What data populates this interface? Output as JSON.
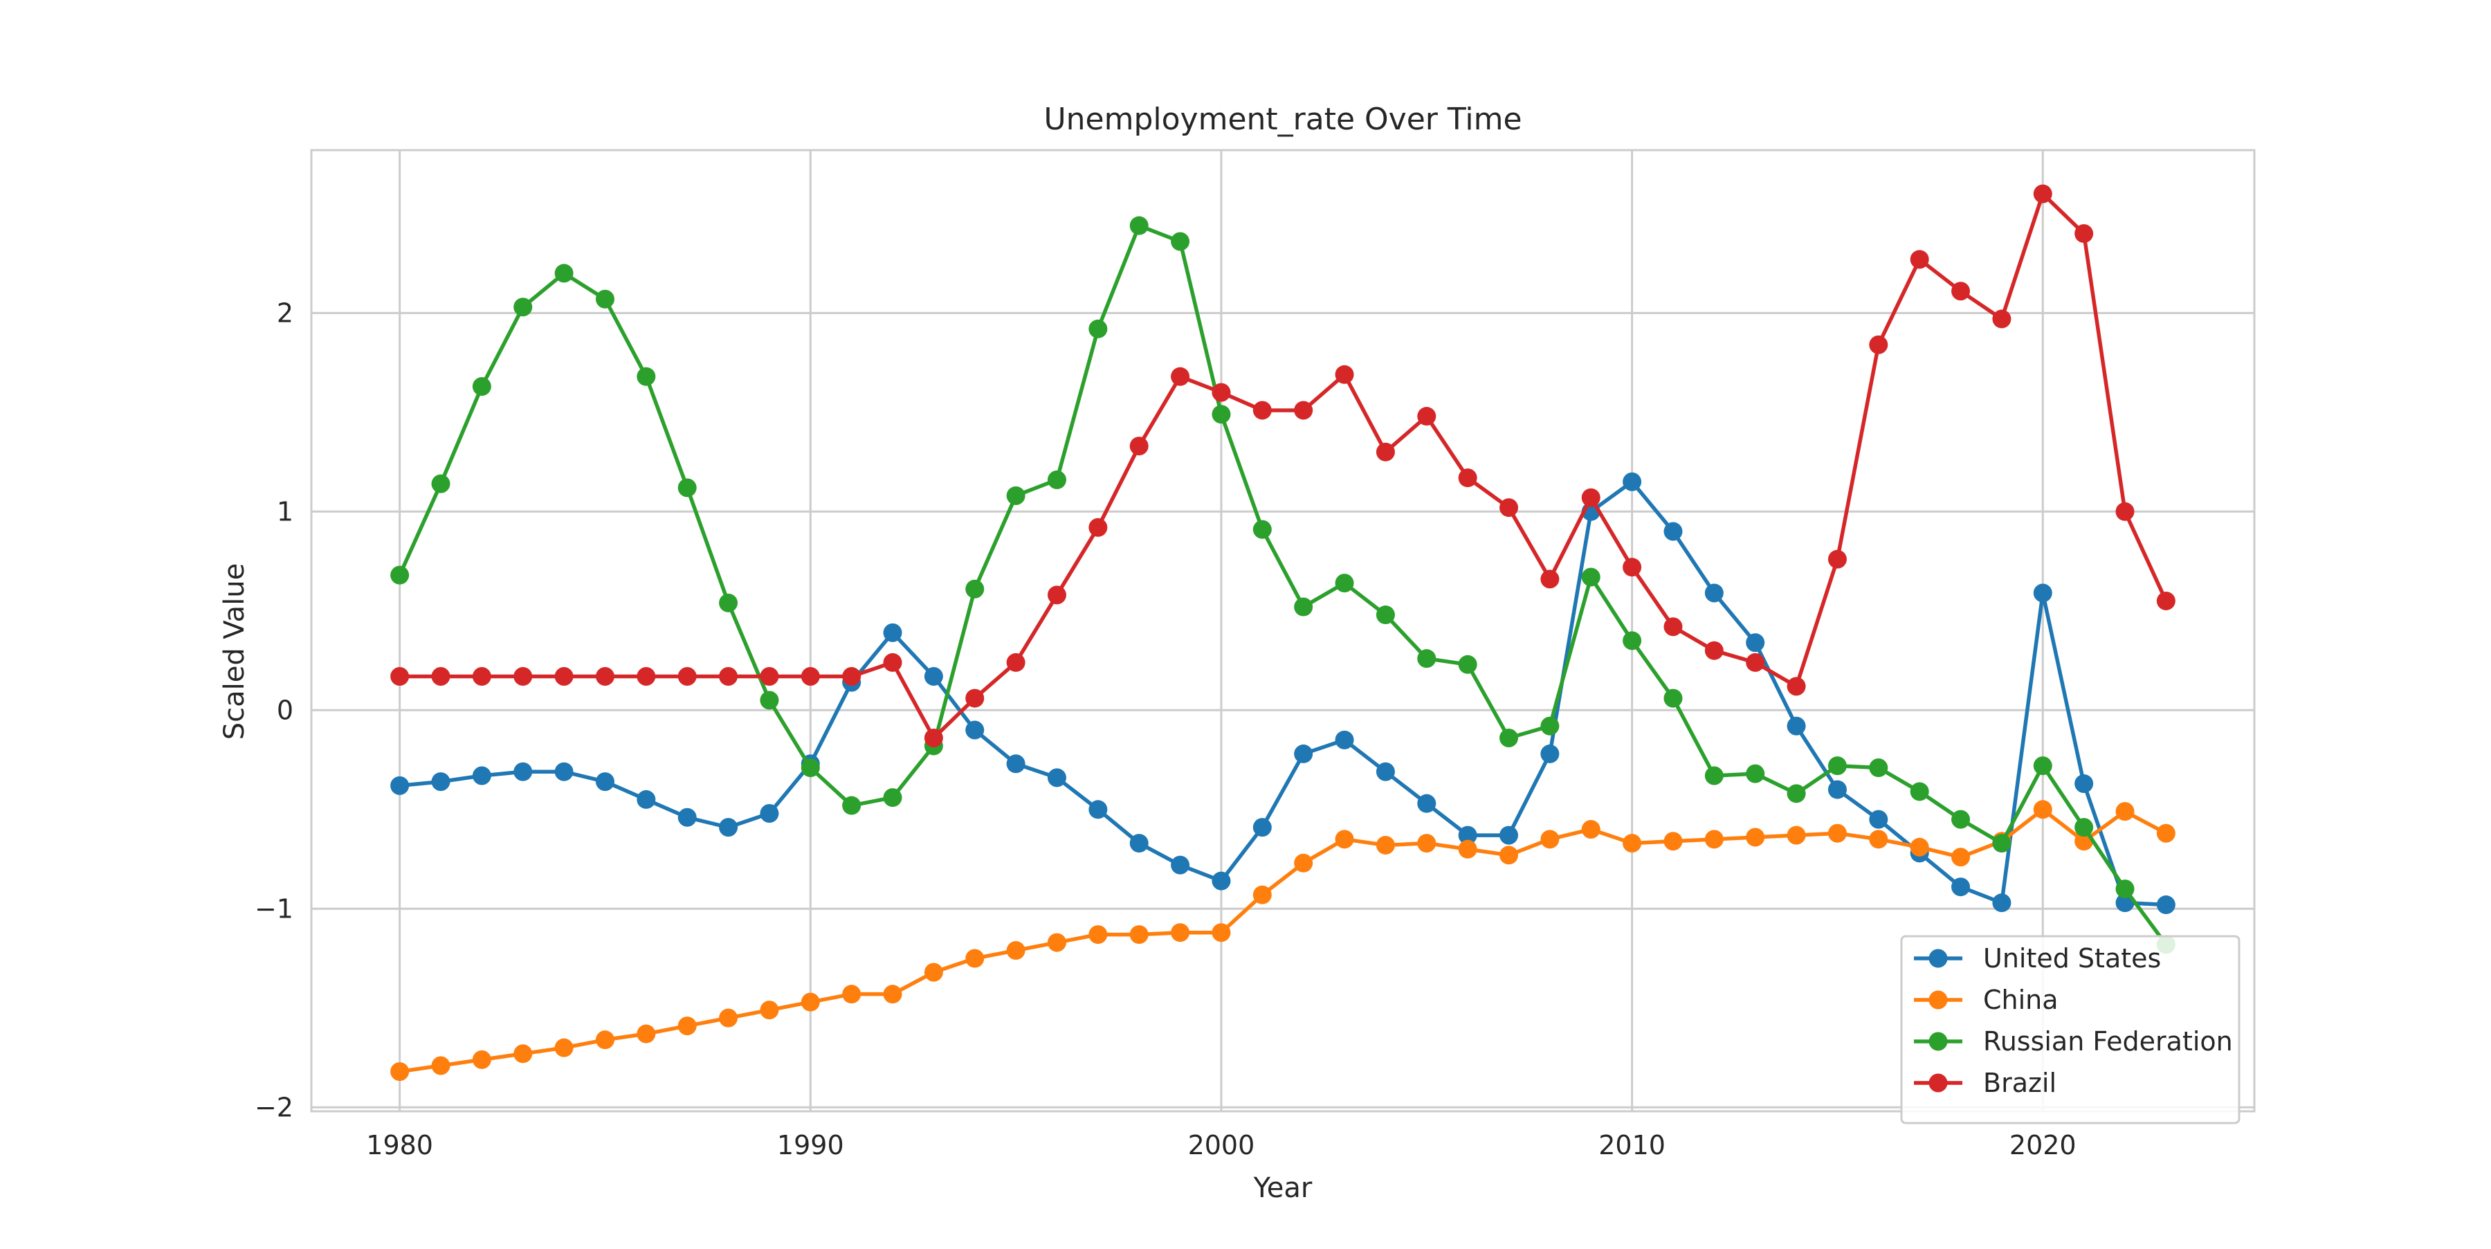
{
  "chart_data": {
    "type": "line",
    "title": "Unemployment_rate Over Time",
    "xlabel": "Year",
    "ylabel": "Scaled Value",
    "x": [
      1980,
      1981,
      1982,
      1983,
      1984,
      1985,
      1986,
      1987,
      1988,
      1989,
      1990,
      1991,
      1992,
      1993,
      1994,
      1995,
      1996,
      1997,
      1998,
      1999,
      2000,
      2001,
      2002,
      2003,
      2004,
      2005,
      2006,
      2007,
      2008,
      2009,
      2010,
      2011,
      2012,
      2013,
      2014,
      2015,
      2016,
      2017,
      2018,
      2019,
      2020,
      2021,
      2022,
      2023
    ],
    "xlim": [
      1977.85,
      2025.15
    ],
    "ylim": [
      -2.02,
      2.82
    ],
    "xticks": [
      1980,
      1990,
      2000,
      2010,
      2020
    ],
    "xtick_labels": [
      "1980",
      "1990",
      "2000",
      "2010",
      "2020"
    ],
    "yticks": [
      -2,
      -1,
      0,
      1,
      2
    ],
    "ytick_labels": [
      "−2",
      "−1",
      "0",
      "1",
      "2"
    ],
    "grid": true,
    "legend_position": "lower right",
    "series": [
      {
        "name": "United States",
        "color": "#1f77b4",
        "values": [
          -0.38,
          -0.36,
          -0.33,
          -0.31,
          -0.31,
          -0.36,
          -0.45,
          -0.54,
          -0.59,
          -0.52,
          -0.27,
          0.14,
          0.39,
          0.17,
          -0.1,
          -0.27,
          -0.34,
          -0.5,
          -0.67,
          -0.78,
          -0.86,
          -0.59,
          -0.22,
          -0.15,
          -0.31,
          -0.47,
          -0.63,
          -0.63,
          -0.22,
          1.0,
          1.15,
          0.9,
          0.59,
          0.34,
          -0.08,
          -0.4,
          -0.55,
          -0.72,
          -0.89,
          -0.97,
          0.59,
          -0.37,
          -0.97,
          -0.98
        ]
      },
      {
        "name": "China",
        "color": "#ff7f0e",
        "values": [
          -1.82,
          -1.79,
          -1.76,
          -1.73,
          -1.7,
          -1.66,
          -1.63,
          -1.59,
          -1.55,
          -1.51,
          -1.47,
          -1.43,
          -1.43,
          -1.32,
          -1.25,
          -1.21,
          -1.17,
          -1.13,
          -1.13,
          -1.12,
          -1.12,
          -0.93,
          -0.77,
          -0.65,
          -0.68,
          -0.67,
          -0.7,
          -0.73,
          -0.65,
          -0.6,
          -0.67,
          -0.66,
          -0.65,
          -0.64,
          -0.63,
          -0.62,
          -0.65,
          -0.69,
          -0.74,
          -0.66,
          -0.5,
          -0.66,
          -0.51,
          -0.62
        ]
      },
      {
        "name": "Russian Federation",
        "color": "#2ca02c",
        "values": [
          0.68,
          1.14,
          1.63,
          2.03,
          2.2,
          2.07,
          1.68,
          1.12,
          0.54,
          0.05,
          -0.29,
          -0.48,
          -0.44,
          -0.18,
          0.61,
          1.08,
          1.16,
          1.92,
          2.44,
          2.36,
          1.49,
          0.91,
          0.52,
          0.64,
          0.48,
          0.26,
          0.23,
          -0.14,
          -0.08,
          0.67,
          0.35,
          0.06,
          -0.33,
          -0.32,
          -0.42,
          -0.28,
          -0.29,
          -0.41,
          -0.55,
          -0.67,
          -0.28,
          -0.59,
          -0.9,
          -1.18
        ]
      },
      {
        "name": "Brazil",
        "color": "#d62728",
        "values": [
          0.17,
          0.17,
          0.17,
          0.17,
          0.17,
          0.17,
          0.17,
          0.17,
          0.17,
          0.17,
          0.17,
          0.17,
          0.24,
          -0.14,
          0.06,
          0.24,
          0.58,
          0.92,
          1.33,
          1.68,
          1.6,
          1.51,
          1.51,
          1.69,
          1.3,
          1.48,
          1.17,
          1.02,
          0.66,
          1.07,
          0.72,
          0.42,
          0.3,
          0.24,
          0.12,
          0.76,
          1.84,
          2.27,
          2.11,
          1.97,
          2.6,
          2.4,
          1.0,
          0.55
        ]
      }
    ]
  }
}
